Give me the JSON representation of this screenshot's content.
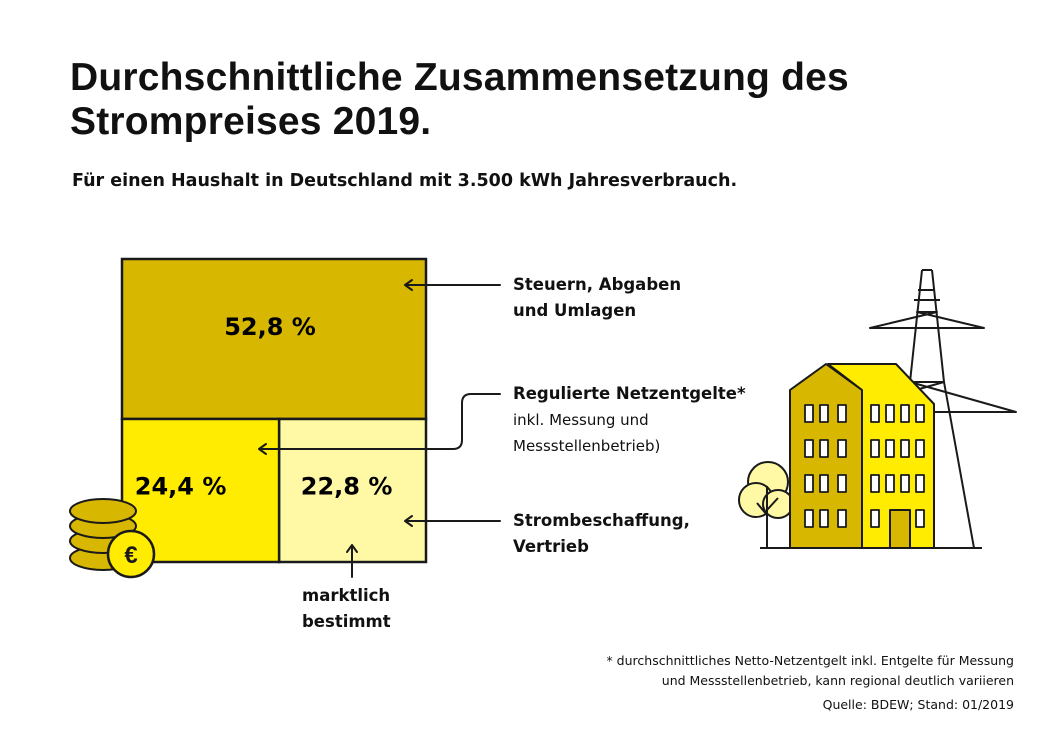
{
  "header": {
    "title_line1": "Durchschnittliche Zusammensetzung des",
    "title_line2": "Strompreises 2019.",
    "subtitle": "Für einen Haushalt in Deutschland mit 3.500 kWh Jahresverbrauch."
  },
  "colors": {
    "steuern": "#D7B700",
    "netzentgelte": "#FFEC00",
    "beschaffung": "#FFF9A6",
    "outline": "#1A1A1A"
  },
  "chart_data": {
    "type": "treemap",
    "title": "Durchschnittliche Zusammensetzung des Strompreises 2019.",
    "unit": "%",
    "segments": [
      {
        "name": "Steuern, Abgaben und Umlagen",
        "value": 52.8,
        "value_label": "52,8 %"
      },
      {
        "name": "Regulierte Netzentgelte",
        "value": 24.4,
        "value_label": "24,4 %"
      },
      {
        "name": "Strombeschaffung, Vertrieb",
        "value": 22.8,
        "value_label": "22,8 %"
      }
    ]
  },
  "labels": {
    "steuern_line1": "Steuern, Abgaben",
    "steuern_line2": "und Umlagen",
    "netz_line1": "Regulierte Netzentgelte*",
    "netz_line2": "inkl. Messung und",
    "netz_line3": "Messstellenbetrieb)",
    "beschaffung_line1": "Strombeschaffung,",
    "beschaffung_line2": "Vertrieb",
    "marktlich_line1": "marktlich",
    "marktlich_line2": "bestimmt"
  },
  "icons": {
    "coins": "coins-euro-icon",
    "euro_symbol": "€",
    "buildings": "apartment-building-icon",
    "pylon": "power-pylon-icon",
    "tree": "tree-icon"
  },
  "footer": {
    "note_line1": "* durchschnittliches Netto-Netzentgelt inkl. Entgelte für Messung",
    "note_line2": "und Messstellenbetrieb, kann regional deutlich variieren",
    "source": "Quelle: BDEW; Stand: 01/2019"
  }
}
